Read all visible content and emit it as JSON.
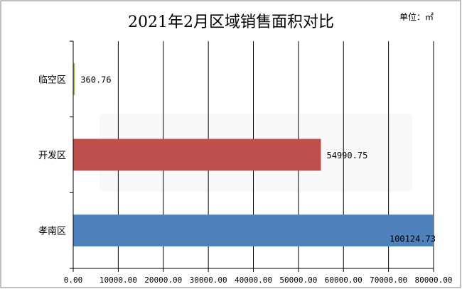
{
  "chart_data": {
    "type": "bar",
    "orientation": "horizontal",
    "title": "2021年2月区域销售面积对比",
    "unit_label": "单位：㎡",
    "categories": [
      "临空区",
      "开发区",
      "孝南区"
    ],
    "values": [
      360.76,
      54990.75,
      100124.73
    ],
    "value_labels": [
      "360.76",
      "54990.75",
      "100124.73"
    ],
    "colors": [
      "#9bbb59",
      "#c0504d",
      "#4f81bd"
    ],
    "xlim": [
      0,
      80000
    ],
    "x_ticks": [
      0,
      10000,
      20000,
      30000,
      40000,
      50000,
      60000,
      70000,
      80000
    ],
    "x_tick_labels": [
      "0.00",
      "10000.00",
      "20000.00",
      "30000.00",
      "40000.00",
      "50000.00",
      "60000.00",
      "70000.00",
      "80000.00"
    ],
    "grid": "vertical",
    "legend": "none",
    "xlabel": "",
    "ylabel": ""
  }
}
